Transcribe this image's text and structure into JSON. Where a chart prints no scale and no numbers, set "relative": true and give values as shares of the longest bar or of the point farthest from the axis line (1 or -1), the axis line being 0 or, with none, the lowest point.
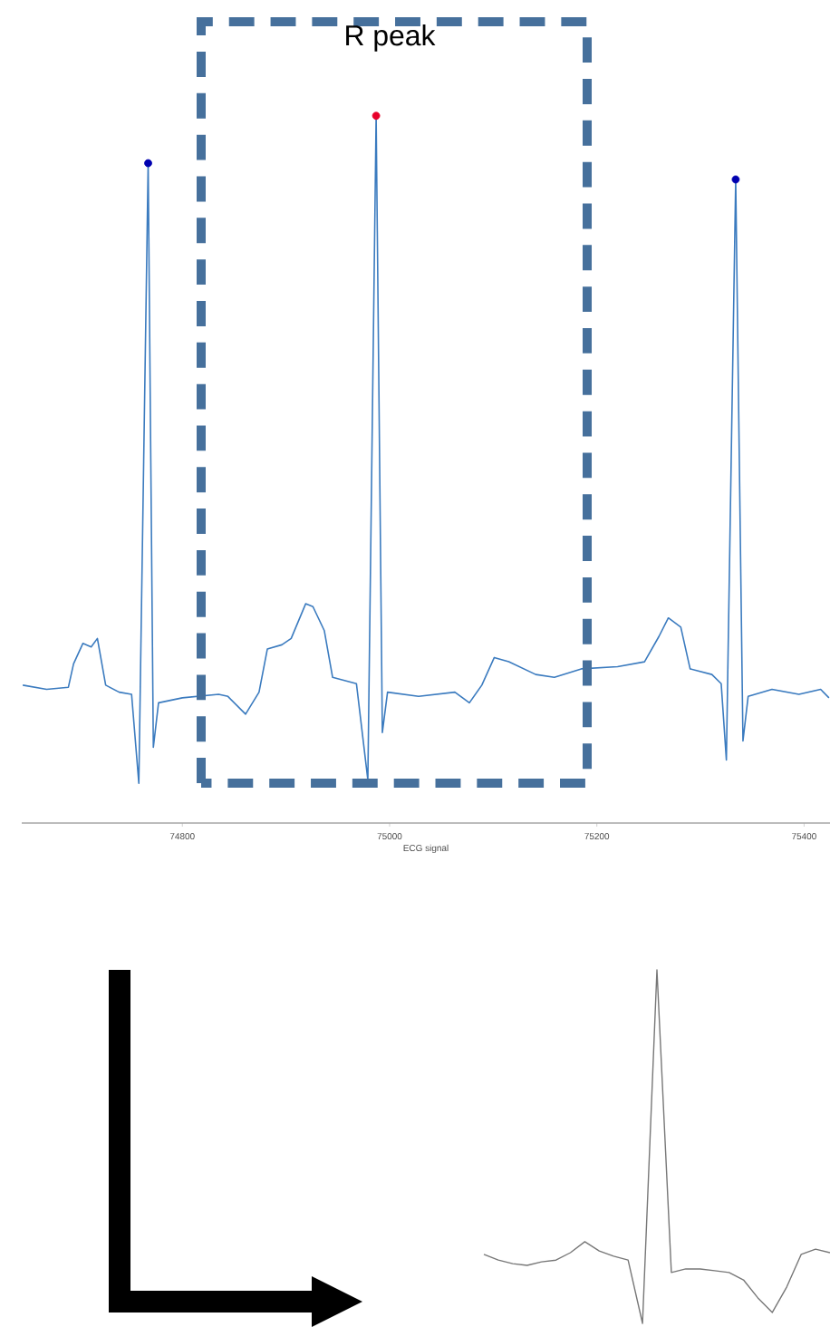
{
  "chart_data": [
    {
      "type": "line",
      "xlabel": "ECG signal",
      "xlim": [
        74645,
        75425
      ],
      "xticks": [
        74800,
        75000,
        75200,
        75400
      ],
      "relative": true,
      "tick_labels": "x",
      "annotations": [
        "R peak"
      ],
      "series": [
        {
          "type": "line",
          "color": "#3b7bbf",
          "x": [
            74646,
            74669,
            74690,
            74695,
            74704,
            74712,
            74718,
            74726,
            74739,
            74751,
            74758,
            74767,
            74772,
            74777,
            74800,
            74835,
            74844,
            74861,
            74874,
            74882,
            74896,
            74905,
            74919,
            74926,
            74937,
            74945,
            74968,
            74979,
            74987,
            74993,
            74998,
            75028,
            75063,
            75077,
            75089,
            75101,
            75115,
            75141,
            75159,
            75185,
            75220,
            75246,
            75260,
            75269,
            75281,
            75290,
            75311,
            75320,
            75325,
            75334,
            75341,
            75346,
            75369,
            75395,
            75416,
            75424
          ],
          "values": [
            0.195,
            0.189,
            0.192,
            0.225,
            0.254,
            0.249,
            0.261,
            0.195,
            0.185,
            0.182,
            0.056,
            0.933,
            0.107,
            0.17,
            0.177,
            0.182,
            0.179,
            0.154,
            0.185,
            0.246,
            0.252,
            0.261,
            0.31,
            0.306,
            0.272,
            0.206,
            0.197,
            0.061,
            1,
            0.128,
            0.185,
            0.179,
            0.185,
            0.17,
            0.195,
            0.234,
            0.228,
            0.21,
            0.206,
            0.218,
            0.221,
            0.228,
            0.264,
            0.29,
            0.277,
            0.218,
            0.21,
            0.197,
            0.089,
            0.91,
            0.116,
            0.179,
            0.189,
            0.182,
            0.189,
            0.177
          ]
        },
        {
          "type": "scatter",
          "marker": "circle",
          "x": [
            74767,
            74987,
            75334
          ],
          "values": [
            0.933,
            1,
            0.91
          ],
          "colors": [
            "#0000b0",
            "#e8002a",
            "#0000b0"
          ]
        }
      ]
    },
    {
      "type": "line",
      "relative": true,
      "tick_labels": false,
      "color": "#777777",
      "categories": [
        null,
        null,
        null,
        null,
        null,
        null,
        null,
        null,
        null,
        null,
        null,
        null,
        null,
        null,
        null,
        null,
        null,
        null,
        null,
        null,
        null,
        null,
        null,
        null,
        null
      ],
      "values": [
        0.195,
        0.179,
        0.169,
        0.164,
        0.174,
        0.179,
        0.2,
        0.231,
        0.205,
        0.19,
        0.179,
        0,
        1,
        0.144,
        0.154,
        0.154,
        0.149,
        0.144,
        0.123,
        0.072,
        0.031,
        0.103,
        0.195,
        0.21,
        0.2
      ]
    }
  ]
}
